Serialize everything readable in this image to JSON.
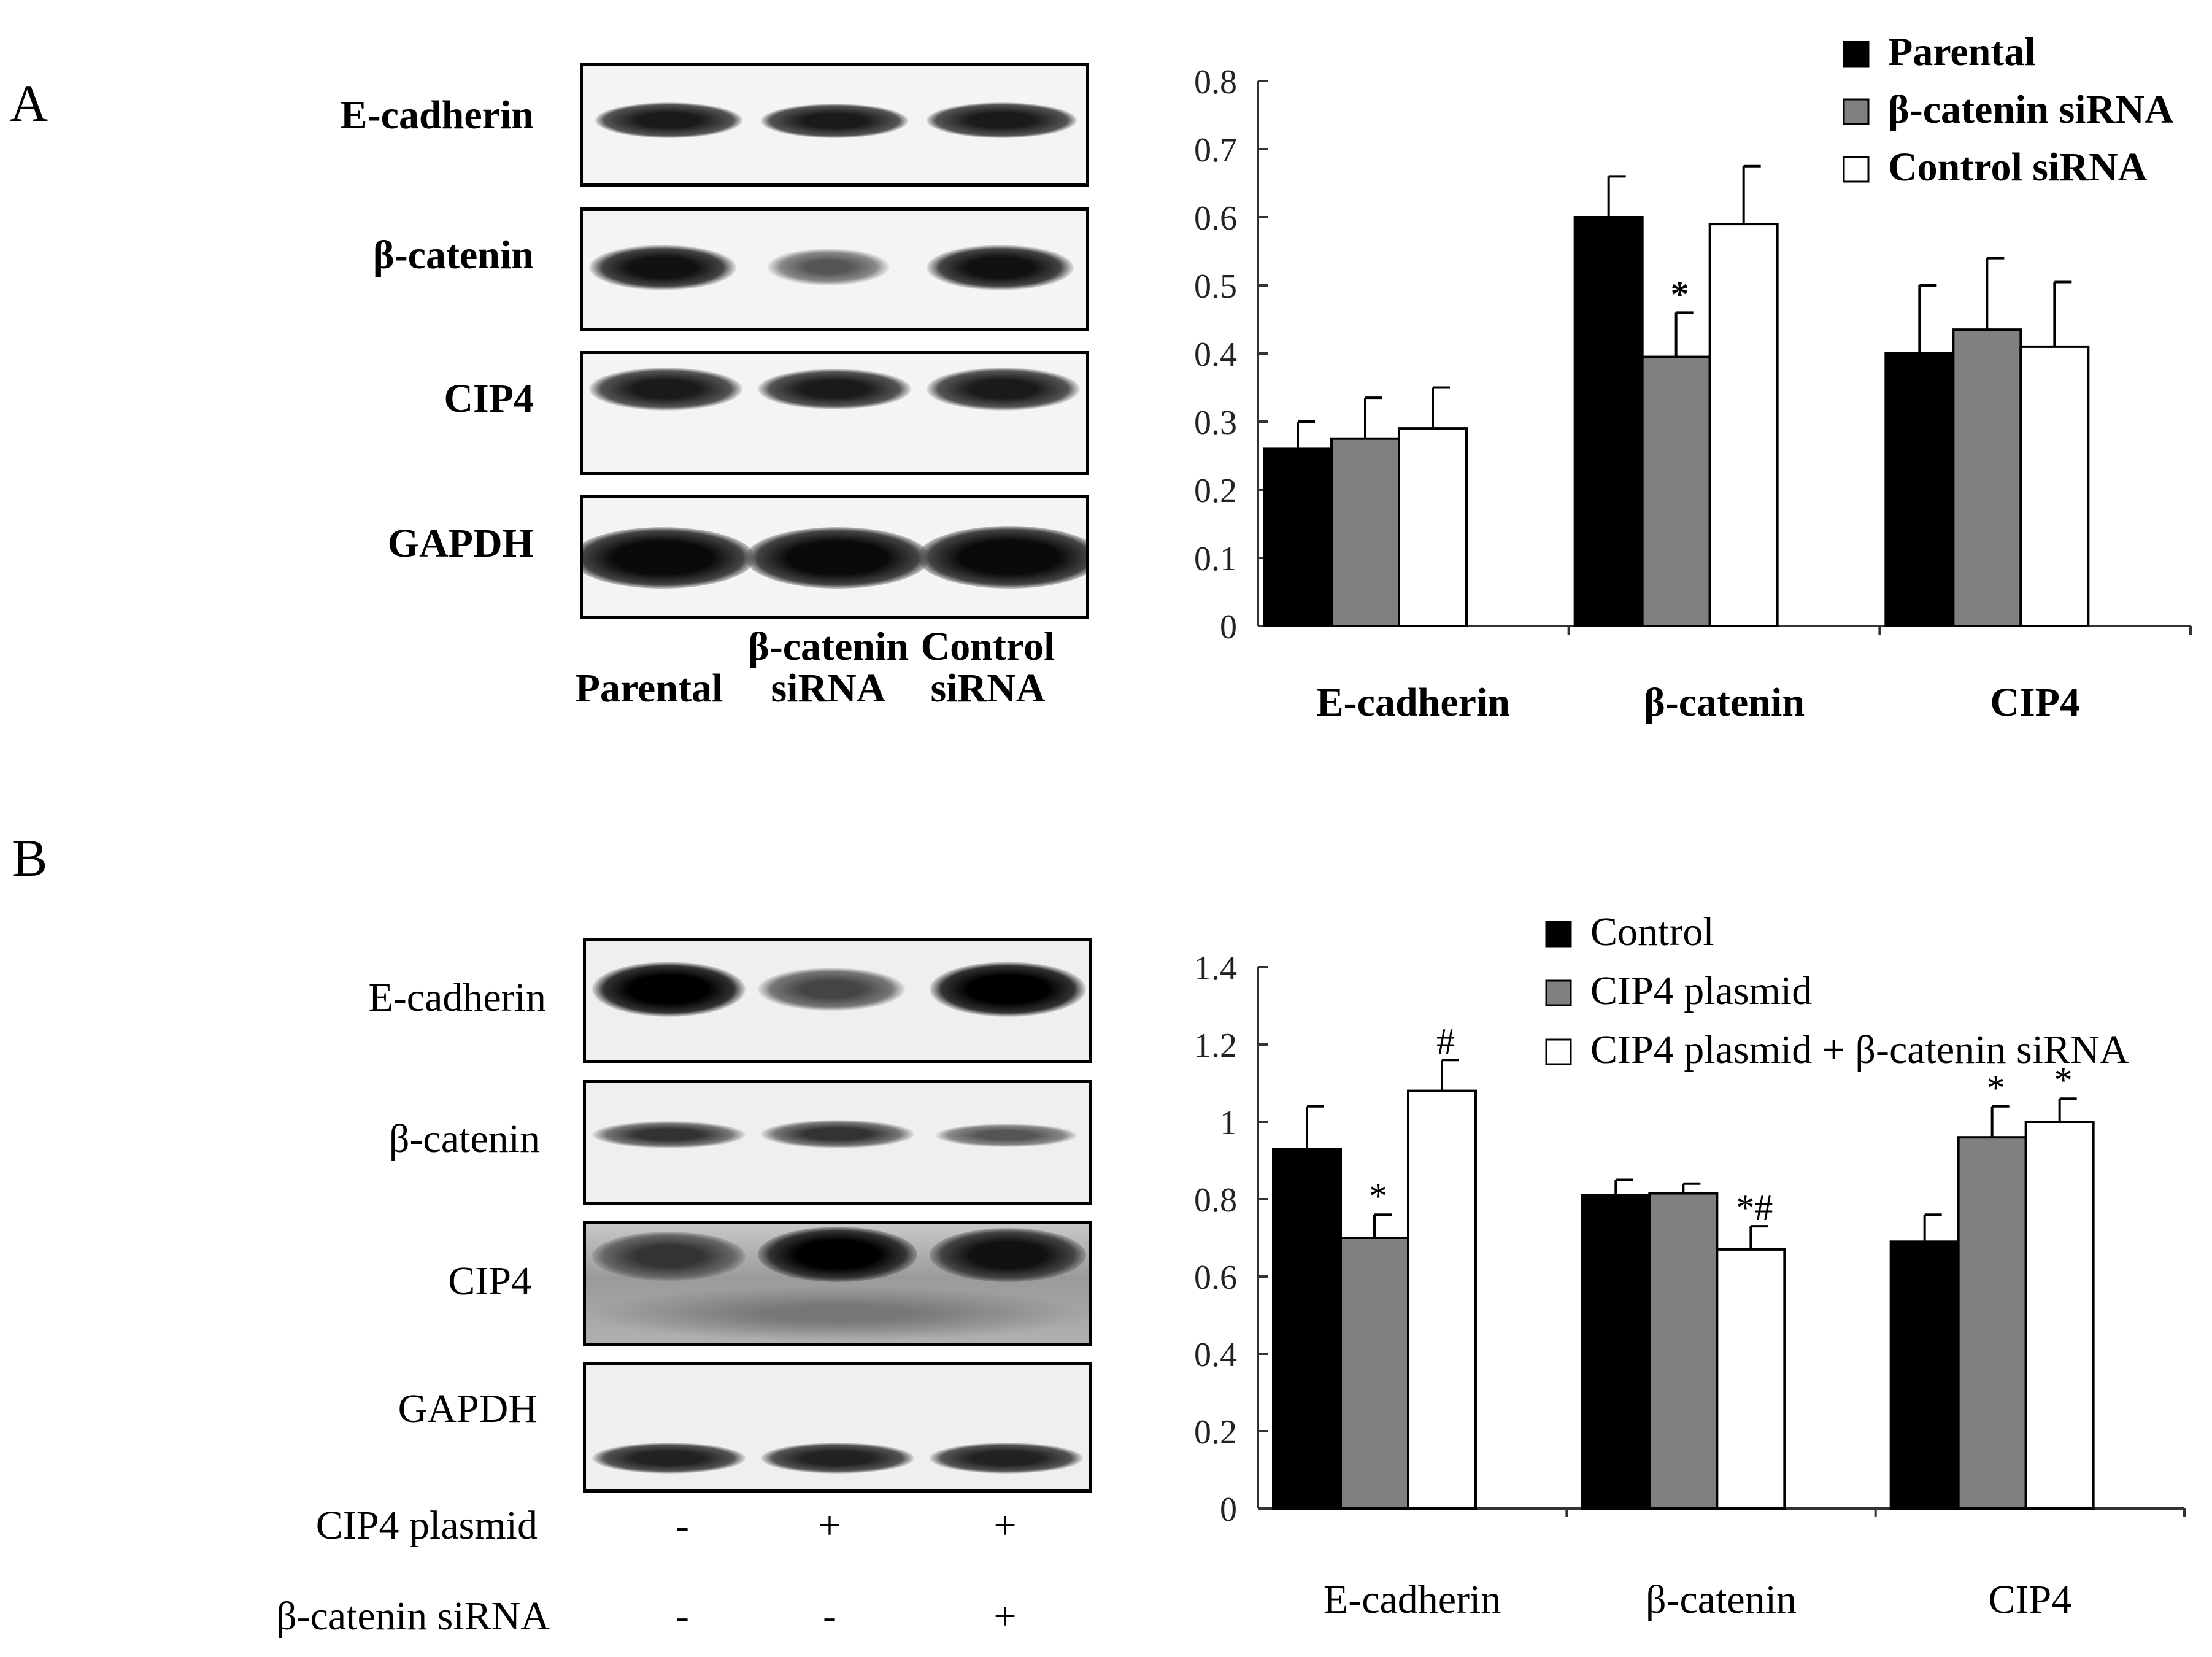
{
  "panels": {
    "a": {
      "letter": "A",
      "blot_labels": [
        "E-cadherin",
        "β-catenin",
        "CIP4",
        "GAPDH"
      ],
      "lane_labels": [
        {
          "line1": "",
          "line2": "Parental"
        },
        {
          "line1": "β-catenin",
          "line2": "siRNA"
        },
        {
          "line1": "Control",
          "line2": "siRNA"
        }
      ]
    },
    "b": {
      "letter": "B",
      "blot_labels": [
        "E-cadherin",
        "β-catenin",
        "CIP4",
        "GAPDH"
      ],
      "treatments": [
        {
          "label": "CIP4 plasmid",
          "signs": [
            "-",
            "+",
            "+"
          ]
        },
        {
          "label": "β-catenin siRNA",
          "signs": [
            "-",
            "-",
            "+"
          ]
        }
      ]
    }
  },
  "chart_data": [
    {
      "type": "bar",
      "panel": "A",
      "categories": [
        "E-cadherin",
        "β-catenin",
        "CIP4"
      ],
      "series": [
        {
          "name": "Parental",
          "color": "#000000",
          "values": [
            0.26,
            0.6,
            0.4
          ],
          "errors": [
            0.04,
            0.06,
            0.1
          ],
          "marks": [
            "",
            "",
            ""
          ]
        },
        {
          "name": "β-catenin siRNA",
          "color": "#808080",
          "values": [
            0.275,
            0.395,
            0.435
          ],
          "errors": [
            0.06,
            0.065,
            0.105
          ],
          "marks": [
            "",
            "*",
            ""
          ]
        },
        {
          "name": "Control siRNA",
          "color": "#ffffff",
          "values": [
            0.29,
            0.59,
            0.41
          ],
          "errors": [
            0.06,
            0.085,
            0.095
          ],
          "marks": [
            "",
            "",
            ""
          ]
        }
      ],
      "ylim": [
        0,
        0.8
      ],
      "yticks": [
        "0",
        "0.1",
        "0.2",
        "0.3",
        "0.4",
        "0.5",
        "0.6",
        "0.7",
        "0.8"
      ],
      "legend_position": "top-right",
      "grid": false,
      "bold": true
    },
    {
      "type": "bar",
      "panel": "B",
      "categories": [
        "E-cadherin",
        "β-catenin",
        "CIP4"
      ],
      "series": [
        {
          "name": "Control",
          "color": "#000000",
          "values": [
            0.93,
            0.81,
            0.69
          ],
          "errors": [
            0.11,
            0.04,
            0.07
          ],
          "marks": [
            "",
            "",
            ""
          ]
        },
        {
          "name": "CIP4 plasmid",
          "color": "#808080",
          "values": [
            0.7,
            0.815,
            0.96
          ],
          "errors": [
            0.06,
            0.025,
            0.08
          ],
          "marks": [
            "*",
            "",
            "*"
          ]
        },
        {
          "name": "CIP4 plasmid + β-catenin siRNA",
          "color": "#ffffff",
          "values": [
            1.08,
            0.67,
            1.0
          ],
          "errors": [
            0.08,
            0.06,
            0.06
          ],
          "marks": [
            "#",
            "*#",
            "*"
          ]
        }
      ],
      "ylim": [
        0,
        1.4
      ],
      "yticks": [
        "0",
        "0.2",
        "0.4",
        "0.6",
        "0.8",
        "1",
        "1.2",
        "1.4"
      ],
      "legend_position": "top-right",
      "grid": false,
      "bold": false
    }
  ]
}
